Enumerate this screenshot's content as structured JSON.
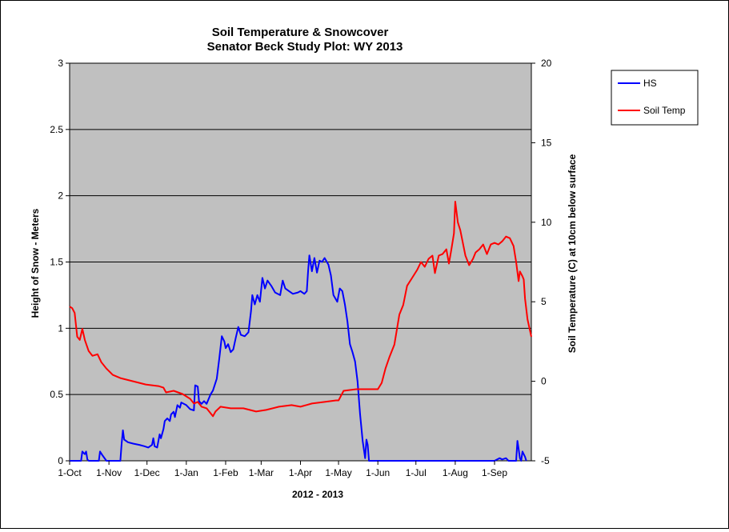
{
  "chart_data": {
    "type": "line",
    "title": "Soil Temperature & Snowcover",
    "subtitle": "Senator Beck Study Plot: WY 2013",
    "xlabel": "2012 - 2013",
    "ylabel": "Height of Snow - Meters",
    "y2label": "Soil Temperature (C) at 10cm below surface",
    "xlim": [
      "2012-10-01",
      "2013-09-30"
    ],
    "ylim": [
      0,
      3
    ],
    "y2lim": [
      -5,
      20
    ],
    "yticks": [
      "0",
      "0.5",
      "1",
      "1.5",
      "2",
      "2.5",
      "3"
    ],
    "y2ticks": [
      "-5",
      "0",
      "5",
      "10",
      "15",
      "20"
    ],
    "xticks": [
      {
        "label": "1-Oct",
        "date": "2012-10-01"
      },
      {
        "label": "1-Nov",
        "date": "2012-11-01"
      },
      {
        "label": "1-Dec",
        "date": "2012-12-01"
      },
      {
        "label": "1-Jan",
        "date": "2013-01-01"
      },
      {
        "label": "1-Feb",
        "date": "2013-02-01"
      },
      {
        "label": "1-Mar",
        "date": "2013-03-01"
      },
      {
        "label": "1-Apr",
        "date": "2013-04-01"
      },
      {
        "label": "1-May",
        "date": "2013-05-01"
      },
      {
        "label": "1-Jun",
        "date": "2013-06-01"
      },
      {
        "label": "1-Jul",
        "date": "2013-07-01"
      },
      {
        "label": "1-Aug",
        "date": "2013-08-01"
      },
      {
        "label": "1-Sep",
        "date": "2013-09-01"
      }
    ],
    "grid": "horizontal",
    "background": "#c0c0c0",
    "legend_position": "top-right",
    "series": [
      {
        "name": "HS",
        "axis": "left",
        "color": "#0000ff",
        "points": [
          [
            "2012-10-01",
            0
          ],
          [
            "2012-10-10",
            0
          ],
          [
            "2012-10-11",
            0.07
          ],
          [
            "2012-10-13",
            0.05
          ],
          [
            "2012-10-14",
            0.07
          ],
          [
            "2012-10-15",
            0.01
          ],
          [
            "2012-10-16",
            0
          ],
          [
            "2012-10-24",
            0
          ],
          [
            "2012-10-25",
            0.07
          ],
          [
            "2012-10-27",
            0.04
          ],
          [
            "2012-10-30",
            0
          ],
          [
            "2012-11-10",
            0
          ],
          [
            "2012-11-11",
            0.13
          ],
          [
            "2012-11-12",
            0.23
          ],
          [
            "2012-11-13",
            0.16
          ],
          [
            "2012-11-16",
            0.14
          ],
          [
            "2012-11-20",
            0.13
          ],
          [
            "2012-11-25",
            0.12
          ],
          [
            "2012-11-29",
            0.11
          ],
          [
            "2012-12-02",
            0.1
          ],
          [
            "2012-12-05",
            0.12
          ],
          [
            "2012-12-06",
            0.17
          ],
          [
            "2012-12-07",
            0.11
          ],
          [
            "2012-12-09",
            0.1
          ],
          [
            "2012-12-11",
            0.2
          ],
          [
            "2012-12-12",
            0.17
          ],
          [
            "2012-12-14",
            0.24
          ],
          [
            "2012-12-15",
            0.3
          ],
          [
            "2012-12-17",
            0.32
          ],
          [
            "2012-12-19",
            0.3
          ],
          [
            "2012-12-20",
            0.35
          ],
          [
            "2012-12-22",
            0.37
          ],
          [
            "2012-12-23",
            0.33
          ],
          [
            "2012-12-25",
            0.42
          ],
          [
            "2012-12-27",
            0.4
          ],
          [
            "2012-12-28",
            0.44
          ],
          [
            "2013-01-01",
            0.42
          ],
          [
            "2013-01-04",
            0.39
          ],
          [
            "2013-01-07",
            0.38
          ],
          [
            "2013-01-08",
            0.57
          ],
          [
            "2013-01-10",
            0.56
          ],
          [
            "2013-01-11",
            0.45
          ],
          [
            "2013-01-13",
            0.43
          ],
          [
            "2013-01-15",
            0.45
          ],
          [
            "2013-01-17",
            0.43
          ],
          [
            "2013-01-20",
            0.5
          ],
          [
            "2013-01-22",
            0.53
          ],
          [
            "2013-01-25",
            0.62
          ],
          [
            "2013-01-27",
            0.77
          ],
          [
            "2013-01-29",
            0.94
          ],
          [
            "2013-01-31",
            0.9
          ],
          [
            "2013-02-01",
            0.85
          ],
          [
            "2013-02-03",
            0.88
          ],
          [
            "2013-02-05",
            0.82
          ],
          [
            "2013-02-07",
            0.84
          ],
          [
            "2013-02-09",
            0.93
          ],
          [
            "2013-02-11",
            1.01
          ],
          [
            "2013-02-13",
            0.95
          ],
          [
            "2013-02-16",
            0.94
          ],
          [
            "2013-02-19",
            0.97
          ],
          [
            "2013-02-21",
            1.13
          ],
          [
            "2013-02-22",
            1.25
          ],
          [
            "2013-02-24",
            1.18
          ],
          [
            "2013-02-26",
            1.25
          ],
          [
            "2013-02-28",
            1.2
          ],
          [
            "2013-03-02",
            1.38
          ],
          [
            "2013-03-04",
            1.3
          ],
          [
            "2013-03-06",
            1.36
          ],
          [
            "2013-03-09",
            1.32
          ],
          [
            "2013-03-12",
            1.27
          ],
          [
            "2013-03-16",
            1.25
          ],
          [
            "2013-03-18",
            1.36
          ],
          [
            "2013-03-20",
            1.3
          ],
          [
            "2013-03-23",
            1.28
          ],
          [
            "2013-03-26",
            1.26
          ],
          [
            "2013-03-30",
            1.27
          ],
          [
            "2013-04-01",
            1.28
          ],
          [
            "2013-04-04",
            1.26
          ],
          [
            "2013-04-06",
            1.28
          ],
          [
            "2013-04-07",
            1.43
          ],
          [
            "2013-04-08",
            1.55
          ],
          [
            "2013-04-10",
            1.43
          ],
          [
            "2013-04-12",
            1.53
          ],
          [
            "2013-04-14",
            1.42
          ],
          [
            "2013-04-16",
            1.51
          ],
          [
            "2013-04-18",
            1.5
          ],
          [
            "2013-04-20",
            1.53
          ],
          [
            "2013-04-23",
            1.48
          ],
          [
            "2013-04-25",
            1.4
          ],
          [
            "2013-04-27",
            1.25
          ],
          [
            "2013-04-30",
            1.2
          ],
          [
            "2013-05-02",
            1.3
          ],
          [
            "2013-05-04",
            1.28
          ],
          [
            "2013-05-06",
            1.18
          ],
          [
            "2013-05-08",
            1.05
          ],
          [
            "2013-05-10",
            0.88
          ],
          [
            "2013-05-12",
            0.82
          ],
          [
            "2013-05-14",
            0.75
          ],
          [
            "2013-05-16",
            0.6
          ],
          [
            "2013-05-18",
            0.35
          ],
          [
            "2013-05-20",
            0.15
          ],
          [
            "2013-05-22",
            0.02
          ],
          [
            "2013-05-23",
            0.16
          ],
          [
            "2013-05-24",
            0.12
          ],
          [
            "2013-05-25",
            0
          ],
          [
            "2013-09-01",
            0
          ],
          [
            "2013-09-05",
            0.02
          ],
          [
            "2013-09-07",
            0.01
          ],
          [
            "2013-09-10",
            0.02
          ],
          [
            "2013-09-12",
            0
          ],
          [
            "2013-09-18",
            0
          ],
          [
            "2013-09-19",
            0.15
          ],
          [
            "2013-09-20",
            0.09
          ],
          [
            "2013-09-21",
            0.02
          ],
          [
            "2013-09-22",
            0
          ],
          [
            "2013-09-23",
            0.07
          ],
          [
            "2013-09-25",
            0.03
          ],
          [
            "2013-09-26",
            0
          ]
        ]
      },
      {
        "name": "Soil Temp",
        "axis": "right",
        "color": "#ff0000",
        "points": [
          [
            "2012-10-01",
            4.7
          ],
          [
            "2012-10-03",
            4.6
          ],
          [
            "2012-10-05",
            4.3
          ],
          [
            "2012-10-07",
            2.8
          ],
          [
            "2012-10-09",
            2.6
          ],
          [
            "2012-10-11",
            3.3
          ],
          [
            "2012-10-13",
            2.6
          ],
          [
            "2012-10-16",
            1.9
          ],
          [
            "2012-10-19",
            1.6
          ],
          [
            "2012-10-23",
            1.7
          ],
          [
            "2012-10-26",
            1.2
          ],
          [
            "2012-10-30",
            0.8
          ],
          [
            "2012-11-04",
            0.4
          ],
          [
            "2012-11-10",
            0.2
          ],
          [
            "2012-11-20",
            0
          ],
          [
            "2012-11-30",
            -0.2
          ],
          [
            "2012-12-10",
            -0.3
          ],
          [
            "2012-12-14",
            -0.4
          ],
          [
            "2012-12-16",
            -0.7
          ],
          [
            "2012-12-22",
            -0.6
          ],
          [
            "2012-12-29",
            -0.8
          ],
          [
            "2013-01-04",
            -1.1
          ],
          [
            "2013-01-07",
            -1.4
          ],
          [
            "2013-01-10",
            -1.3
          ],
          [
            "2013-01-13",
            -1.6
          ],
          [
            "2013-01-17",
            -1.7
          ],
          [
            "2013-01-22",
            -2.2
          ],
          [
            "2013-01-24",
            -1.9
          ],
          [
            "2013-01-28",
            -1.6
          ],
          [
            "2013-02-05",
            -1.7
          ],
          [
            "2013-02-15",
            -1.7
          ],
          [
            "2013-02-25",
            -1.9
          ],
          [
            "2013-03-05",
            -1.8
          ],
          [
            "2013-03-15",
            -1.6
          ],
          [
            "2013-03-25",
            -1.5
          ],
          [
            "2013-04-01",
            -1.6
          ],
          [
            "2013-04-10",
            -1.4
          ],
          [
            "2013-04-20",
            -1.3
          ],
          [
            "2013-04-29",
            -1.2
          ],
          [
            "2013-05-01",
            -1.2
          ],
          [
            "2013-05-05",
            -0.6
          ],
          [
            "2013-05-15",
            -0.5
          ],
          [
            "2013-05-28",
            -0.5
          ],
          [
            "2013-06-01",
            -0.5
          ],
          [
            "2013-06-04",
            -0.1
          ],
          [
            "2013-06-07",
            0.8
          ],
          [
            "2013-06-10",
            1.5
          ],
          [
            "2013-06-14",
            2.3
          ],
          [
            "2013-06-18",
            4.2
          ],
          [
            "2013-06-21",
            4.8
          ],
          [
            "2013-06-24",
            6.0
          ],
          [
            "2013-06-28",
            6.5
          ],
          [
            "2013-07-02",
            7.0
          ],
          [
            "2013-07-05",
            7.5
          ],
          [
            "2013-07-08",
            7.2
          ],
          [
            "2013-07-11",
            7.7
          ],
          [
            "2013-07-14",
            7.9
          ],
          [
            "2013-07-16",
            6.8
          ],
          [
            "2013-07-19",
            7.9
          ],
          [
            "2013-07-22",
            8.0
          ],
          [
            "2013-07-25",
            8.3
          ],
          [
            "2013-07-27",
            7.4
          ],
          [
            "2013-07-29",
            8.3
          ],
          [
            "2013-07-31",
            9.3
          ],
          [
            "2013-08-01",
            11.3
          ],
          [
            "2013-08-03",
            10.0
          ],
          [
            "2013-08-05",
            9.5
          ],
          [
            "2013-08-09",
            7.9
          ],
          [
            "2013-08-12",
            7.3
          ],
          [
            "2013-08-15",
            7.7
          ],
          [
            "2013-08-17",
            8.1
          ],
          [
            "2013-08-20",
            8.3
          ],
          [
            "2013-08-23",
            8.6
          ],
          [
            "2013-08-26",
            8.0
          ],
          [
            "2013-08-29",
            8.6
          ],
          [
            "2013-09-01",
            8.7
          ],
          [
            "2013-09-04",
            8.6
          ],
          [
            "2013-09-07",
            8.8
          ],
          [
            "2013-09-10",
            9.1
          ],
          [
            "2013-09-13",
            9.0
          ],
          [
            "2013-09-16",
            8.5
          ],
          [
            "2013-09-18",
            7.5
          ],
          [
            "2013-09-20",
            6.3
          ],
          [
            "2013-09-21",
            6.9
          ],
          [
            "2013-09-23",
            6.6
          ],
          [
            "2013-09-24",
            6.4
          ],
          [
            "2013-09-25",
            5.2
          ],
          [
            "2013-09-27",
            3.9
          ],
          [
            "2013-09-30",
            2.8
          ]
        ]
      }
    ]
  }
}
